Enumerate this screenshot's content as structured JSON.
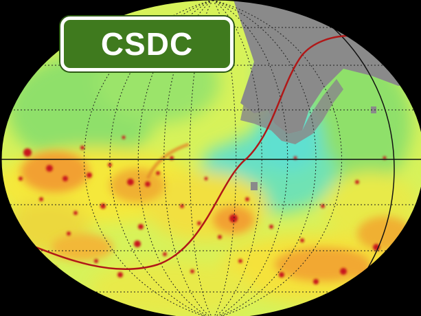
{
  "logo": {
    "text": "CSDC"
  },
  "colors": {
    "background": "#000000",
    "map_base": "#d7f25a",
    "map_green": "#8fe06a",
    "map_cyan": "#5fe0d0",
    "map_yellow": "#f5e83a",
    "map_orange": "#f2a030",
    "hotspot_red": "#c8181a",
    "masked_gray": "#8a8a8a",
    "ecliptic_line": "#b01818",
    "grid_line": "#202020",
    "logo_green": "#3f7a1e",
    "logo_border": "#ffffff"
  },
  "map": {
    "projection": "mollweide",
    "meridian_count": 12,
    "parallel_count": 6,
    "icons": [
      "equator-line",
      "central-meridian-line",
      "ecliptic-curve"
    ]
  }
}
